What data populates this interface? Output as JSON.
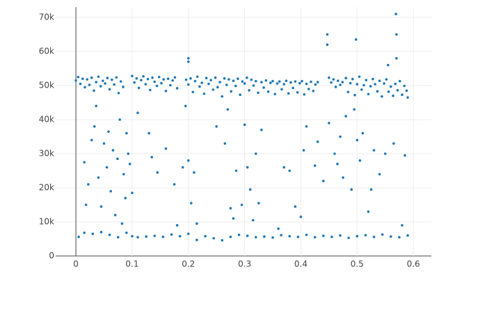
{
  "chart_data": {
    "type": "scatter",
    "color": "#1f77b4",
    "grid": true,
    "xlim": [
      -0.036,
      0.632
    ],
    "xticks": [
      0,
      0.1,
      0.2,
      0.3,
      0.4,
      0.5,
      0.6
    ],
    "ylim": [
      0,
      73000
    ],
    "yticks": [
      0,
      {
        "value": 10000,
        "label": "10k"
      },
      {
        "value": 20000,
        "label": "20k"
      },
      {
        "value": 30000,
        "label": "30k"
      },
      {
        "value": 40000,
        "label": "40k"
      },
      {
        "value": 50000,
        "label": "50k"
      },
      {
        "value": 60000,
        "label": "60k"
      },
      {
        "value": 70000,
        "label": "70k"
      }
    ],
    "x": [
      0,
      0.004,
      0.008,
      0.012,
      0.016,
      0.02,
      0.024,
      0.028,
      0.032,
      0.036,
      0.04,
      0.044,
      0.048,
      0.052,
      0.056,
      0.06,
      0.064,
      0.068,
      0.072,
      0.076,
      0.08,
      0.084,
      0.1,
      0.104,
      0.108,
      0.112,
      0.116,
      0.12,
      0.124,
      0.128,
      0.132,
      0.136,
      0.14,
      0.144,
      0.148,
      0.152,
      0.156,
      0.16,
      0.164,
      0.168,
      0.172,
      0.176,
      0.18,
      0.196,
      0.2,
      0.204,
      0.208,
      0.212,
      0.216,
      0.22,
      0.224,
      0.228,
      0.232,
      0.236,
      0.24,
      0.244,
      0.248,
      0.252,
      0.256,
      0.26,
      0.264,
      0.268,
      0.272,
      0.276,
      0.28,
      0.284,
      0.288,
      0.292,
      0.296,
      0.3,
      0.304,
      0.308,
      0.312,
      0.316,
      0.32,
      0.324,
      0.33,
      0.334,
      0.338,
      0.342,
      0.346,
      0.35,
      0.354,
      0.358,
      0.362,
      0.366,
      0.37,
      0.374,
      0.378,
      0.382,
      0.386,
      0.39,
      0.394,
      0.398,
      0.402,
      0.406,
      0.41,
      0.414,
      0.418,
      0.422,
      0.426,
      0.43,
      0.45,
      0.454,
      0.458,
      0.462,
      0.466,
      0.47,
      0.474,
      0.48,
      0.484,
      0.488,
      0.492,
      0.496,
      0.5,
      0.504,
      0.508,
      0.512,
      0.516,
      0.52,
      0.524,
      0.528,
      0.532,
      0.536,
      0.54,
      0.544,
      0.548,
      0.552,
      0.556,
      0.56,
      0.564,
      0.568,
      0.572,
      0.576,
      0.58,
      0.584,
      0.588,
      0.59,
      0.2,
      0.2,
      0.447,
      0.447,
      0.498,
      0.569,
      0.57,
      0.57,
      0.555,
      0.005,
      0.015,
      0.03,
      0.045,
      0.06,
      0.075,
      0.09,
      0.1,
      0.11,
      0.125,
      0.14,
      0.155,
      0.17,
      0.185,
      0.2,
      0.215,
      0.23,
      0.245,
      0.26,
      0.275,
      0.29,
      0.305,
      0.32,
      0.335,
      0.35,
      0.365,
      0.38,
      0.395,
      0.41,
      0.425,
      0.44,
      0.455,
      0.47,
      0.485,
      0.5,
      0.515,
      0.53,
      0.545,
      0.56,
      0.575,
      0.59,
      0.015,
      0.018,
      0.022,
      0.028,
      0.033,
      0.036,
      0.04,
      0.045,
      0.05,
      0.055,
      0.058,
      0.062,
      0.066,
      0.07,
      0.074,
      0.078,
      0.082,
      0.085,
      0.088,
      0.09,
      0.093,
      0.096,
      0.1,
      0.11,
      0.13,
      0.135,
      0.145,
      0.16,
      0.175,
      0.18,
      0.19,
      0.195,
      0.2,
      0.205,
      0.21,
      0.215,
      0.25,
      0.265,
      0.27,
      0.275,
      0.28,
      0.285,
      0.295,
      0.3,
      0.305,
      0.31,
      0.315,
      0.32,
      0.325,
      0.33,
      0.36,
      0.37,
      0.38,
      0.39,
      0.4,
      0.405,
      0.41,
      0.425,
      0.43,
      0.44,
      0.45,
      0.46,
      0.465,
      0.47,
      0.475,
      0.48,
      0.49,
      0.495,
      0.5,
      0.505,
      0.51,
      0.52,
      0.525,
      0.53,
      0.54,
      0.55,
      0.565,
      0.58,
      0.585
    ],
    "y": [
      51500,
      52500,
      50500,
      52000,
      49500,
      51800,
      50200,
      52300,
      48500,
      51000,
      52600,
      49800,
      51400,
      50600,
      52200,
      48900,
      51700,
      50300,
      52400,
      47800,
      51200,
      49600,
      52800,
      50900,
      52100,
      49300,
      51600,
      52700,
      50400,
      51900,
      48700,
      52300,
      51100,
      49900,
      52500,
      50700,
      51800,
      48400,
      52000,
      50100,
      51500,
      52400,
      49200,
      51700,
      50300,
      52100,
      48100,
      51300,
      52600,
      49700,
      50800,
      47600,
      52200,
      50500,
      51600,
      48800,
      52300,
      49500,
      51000,
      46800,
      52100,
      50200,
      51800,
      48300,
      51400,
      49900,
      52000,
      47300,
      51200,
      50600,
      52300,
      48600,
      51700,
      50000,
      51300,
      47900,
      51000,
      49400,
      51500,
      48200,
      50800,
      51300,
      47500,
      50600,
      51200,
      48900,
      50400,
      51400,
      47700,
      50900,
      49300,
      51200,
      48000,
      50700,
      51300,
      47400,
      50500,
      49000,
      51100,
      48400,
      50300,
      51000,
      52300,
      50900,
      51800,
      49600,
      51400,
      50200,
      51000,
      52200,
      48100,
      50700,
      51900,
      47200,
      50400,
      52600,
      48800,
      50100,
      51600,
      47500,
      49800,
      51900,
      50400,
      48300,
      51400,
      46800,
      50600,
      51800,
      48200,
      49700,
      47000,
      50500,
      48600,
      51300,
      47300,
      49900,
      48500,
      46500,
      58000,
      57000,
      65000,
      62000,
      63500,
      71000,
      65000,
      58000,
      56000,
      5600,
      6800,
      6500,
      7000,
      6200,
      5500,
      6800,
      5800,
      5500,
      5700,
      5900,
      5600,
      6300,
      5800,
      6500,
      4700,
      5800,
      5200,
      4600,
      5600,
      6200,
      5900,
      5500,
      5700,
      5400,
      6100,
      5800,
      5600,
      6200,
      5500,
      5900,
      5600,
      6000,
      5300,
      5800,
      6100,
      5600,
      6300,
      5700,
      5500,
      6000,
      27500,
      15000,
      21000,
      34000,
      38000,
      44000,
      23000,
      14500,
      33000,
      26000,
      36500,
      19000,
      31000,
      12000,
      28500,
      40000,
      9500,
      24000,
      17000,
      36000,
      30000,
      27000,
      18500,
      42000,
      36000,
      29000,
      24500,
      31500,
      21000,
      9000,
      26000,
      44000,
      28000,
      15500,
      24500,
      9500,
      38000,
      33000,
      43000,
      14000,
      11000,
      25000,
      15000,
      38500,
      26000,
      19500,
      10500,
      30000,
      15500,
      37000,
      8000,
      26000,
      25000,
      14500,
      11500,
      31000,
      38000,
      26500,
      33500,
      22000,
      39000,
      30000,
      27000,
      35000,
      23000,
      41000,
      19500,
      43000,
      34000,
      28000,
      36000,
      13000,
      19500,
      31000,
      24000,
      30000,
      33000,
      9000,
      29500
    ]
  }
}
